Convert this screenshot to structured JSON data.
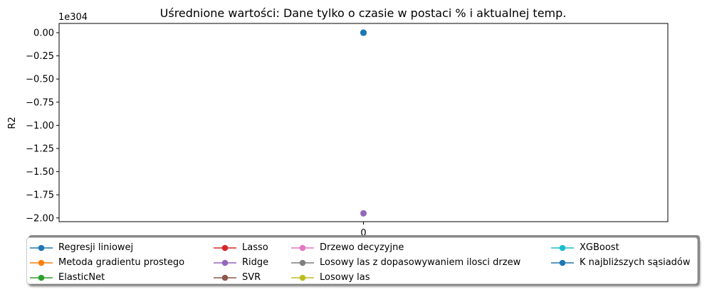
{
  "chart_data": {
    "type": "line",
    "title": "Uśrednione wartości: Dane tylko o czasie w postaci % i aktualnej temp.",
    "xlabel": "",
    "ylabel": "R2",
    "y_scale_label": "1e304",
    "x_ticks": [
      "0"
    ],
    "y_ticks": [
      "0.00",
      "−0.25",
      "−0.50",
      "−0.75",
      "−1.00",
      "−1.25",
      "−1.50",
      "−1.75",
      "−2.00"
    ],
    "ylim": [
      -2.04,
      0.1
    ],
    "xlim": [
      -1,
      1
    ],
    "grid": false,
    "legend_placement": "bottom, outside plot, 4 columns",
    "categories": [
      "0"
    ],
    "series": [
      {
        "name": "Regresji liniowej",
        "color": "#1f77b4",
        "x": [
          0
        ],
        "values": [
          0
        ]
      },
      {
        "name": "Metoda gradientu prostego",
        "color": "#ff7f0e",
        "x": [
          0
        ],
        "values": [
          0
        ]
      },
      {
        "name": "ElasticNet",
        "color": "#2ca02c",
        "x": [
          0
        ],
        "values": [
          0
        ]
      },
      {
        "name": "Lasso",
        "color": "#d62728",
        "x": [
          0
        ],
        "values": [
          0
        ]
      },
      {
        "name": "Ridge",
        "color": "#9467bd",
        "x": [
          0
        ],
        "values": [
          -1.95
        ]
      },
      {
        "name": "SVR",
        "color": "#8c564b",
        "x": [
          0
        ],
        "values": [
          0
        ]
      },
      {
        "name": "Drzewo decyzyjne",
        "color": "#e377c2",
        "x": [
          0
        ],
        "values": [
          0
        ]
      },
      {
        "name": "Losowy las z dopasowywaniem ilosci drzew",
        "color": "#7f7f7f",
        "x": [
          0
        ],
        "values": [
          0
        ]
      },
      {
        "name": "Losowy las",
        "color": "#bcbd22",
        "x": [
          0
        ],
        "values": [
          0
        ]
      },
      {
        "name": "XGBoost",
        "color": "#17becf",
        "x": [
          0
        ],
        "values": [
          0
        ]
      },
      {
        "name": "K najbliższych sąsiadów",
        "color": "#1f77b4",
        "x": [
          0
        ],
        "values": [
          0
        ]
      }
    ]
  }
}
